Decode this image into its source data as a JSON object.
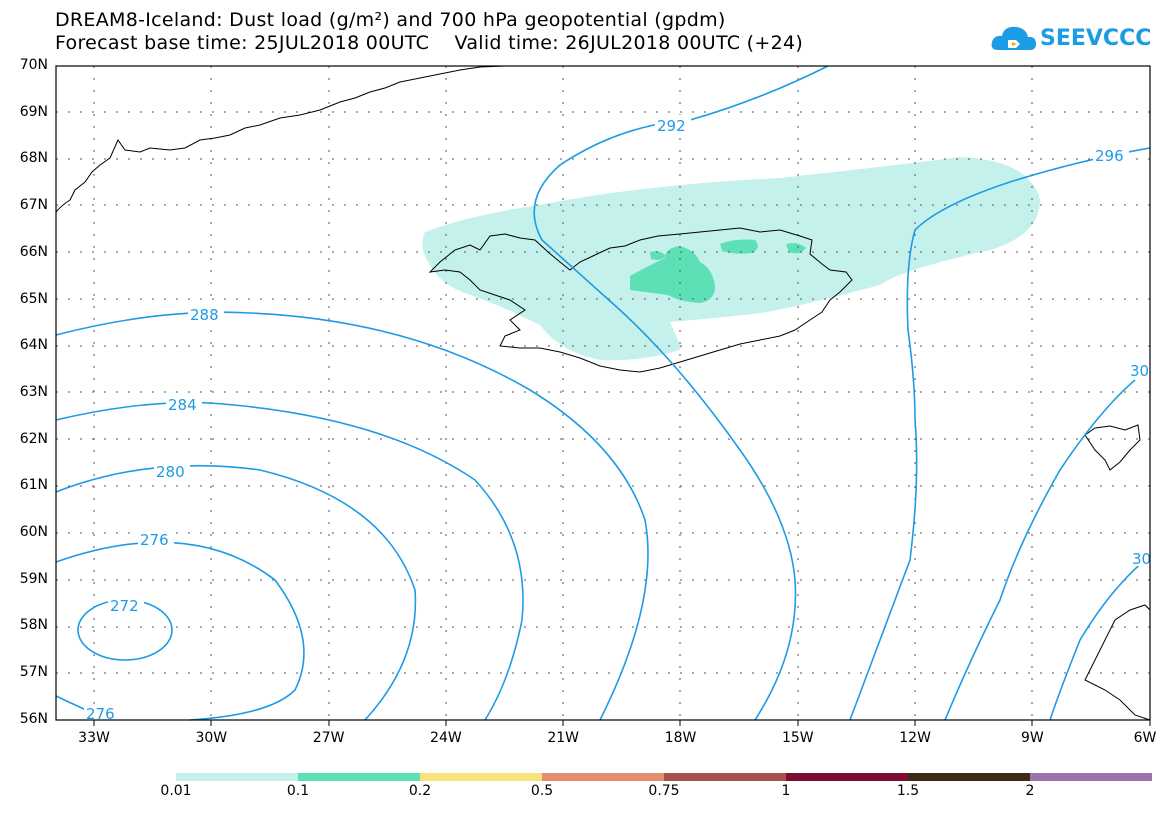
{
  "header": {
    "title": "DREAM8-Iceland: Dust load (g/m²) and 700 hPa geopotential (gpdm)",
    "subtitle": "Forecast base time: 25JUL2018 00UTC    Valid time: 26JUL2018 00UTC (+24)"
  },
  "logo": {
    "text": "SEEVCCC",
    "icon": "cloud-icon",
    "color": "#1b9ce5"
  },
  "map": {
    "lat_labels": [
      "70N",
      "69N",
      "68N",
      "67N",
      "66N",
      "65N",
      "64N",
      "63N",
      "62N",
      "61N",
      "60N",
      "59N",
      "58N",
      "57N",
      "56N"
    ],
    "lon_labels": [
      "33W",
      "30W",
      "27W",
      "24W",
      "21W",
      "18W",
      "15W",
      "12W",
      "9W",
      "6W"
    ],
    "contour_labels": {
      "c272": "272",
      "c276a": "276",
      "c276b": "276",
      "c280": "280",
      "c284": "284",
      "c288": "288",
      "c292": "292",
      "c296": "296",
      "c300a": "30",
      "c300b": "30"
    },
    "contour_color": "#1e9be6"
  },
  "colorbar": {
    "labels": [
      "0.01",
      "0.1",
      "0.2",
      "0.5",
      "0.75",
      "1",
      "1.5",
      "2"
    ],
    "colors": [
      "#c4f1eb",
      "#5ee0b7",
      "#f7e27c",
      "#e48e6e",
      "#a5534a",
      "#7d0c33",
      "#3e2a18",
      "#9a73a8"
    ]
  }
}
